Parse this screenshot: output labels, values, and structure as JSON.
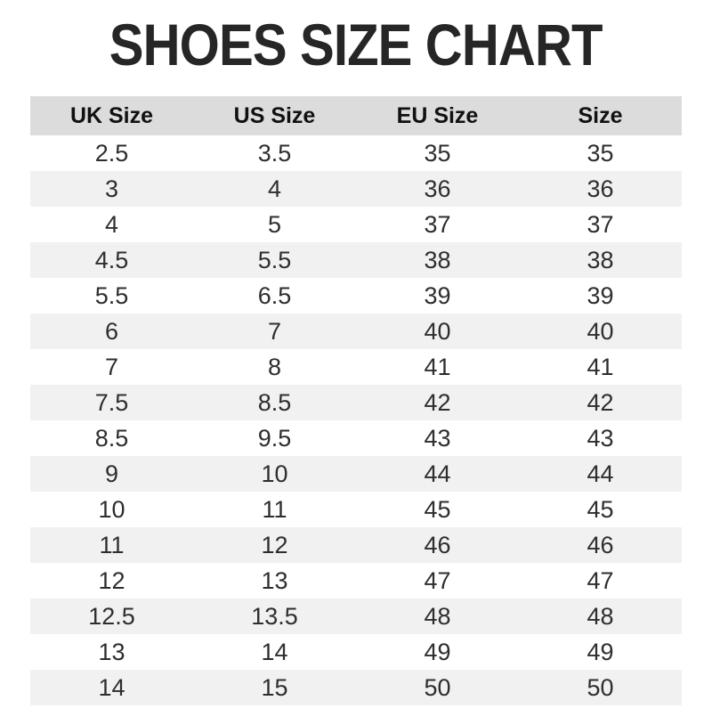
{
  "page": {
    "title": "SHOES SIZE CHART"
  },
  "chart_data": {
    "type": "table",
    "title": "SHOES SIZE CHART",
    "columns": [
      "UK Size",
      "US Size",
      "EU Size",
      "Size"
    ],
    "rows": [
      [
        "2.5",
        "3.5",
        "35",
        "35"
      ],
      [
        "3",
        "4",
        "36",
        "36"
      ],
      [
        "4",
        "5",
        "37",
        "37"
      ],
      [
        "4.5",
        "5.5",
        "38",
        "38"
      ],
      [
        "5.5",
        "6.5",
        "39",
        "39"
      ],
      [
        "6",
        "7",
        "40",
        "40"
      ],
      [
        "7",
        "8",
        "41",
        "41"
      ],
      [
        "7.5",
        "8.5",
        "42",
        "42"
      ],
      [
        "8.5",
        "9.5",
        "43",
        "43"
      ],
      [
        "9",
        "10",
        "44",
        "44"
      ],
      [
        "10",
        "11",
        "45",
        "45"
      ],
      [
        "11",
        "12",
        "46",
        "46"
      ],
      [
        "12",
        "13",
        "47",
        "47"
      ],
      [
        "12.5",
        "13.5",
        "48",
        "48"
      ],
      [
        "13",
        "14",
        "49",
        "49"
      ],
      [
        "14",
        "15",
        "50",
        "50"
      ]
    ],
    "layout": {
      "stripe_pattern": "even rows white, odd rows gray, header gray",
      "grid": "off"
    }
  },
  "colors": {
    "title_text": "#262626",
    "header_bg": "#dcdcdc",
    "stripe_bg": "#f1f1f1",
    "body_text": "#2e2e2e"
  }
}
